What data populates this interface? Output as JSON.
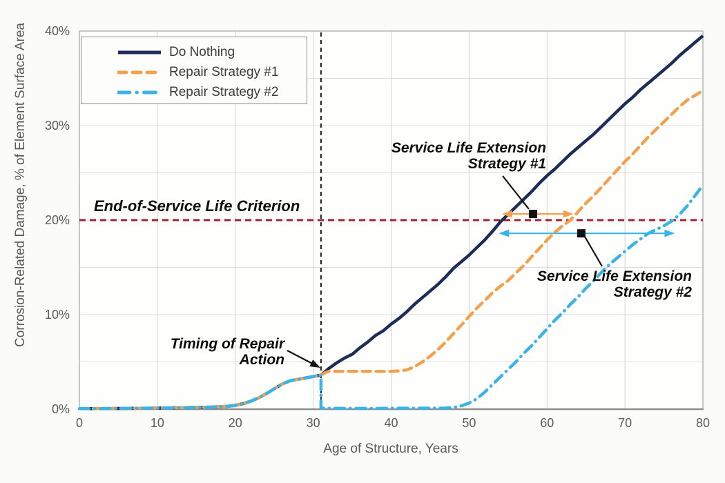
{
  "figure": {
    "background": "#fbfbf9",
    "plot_background": "#fefefd"
  },
  "chart_data": {
    "type": "line",
    "title": "",
    "xlabel": "Age of Structure, Years",
    "ylabel": "Corrosion-Related Damage, % of Element Surface Area",
    "xlim": [
      0,
      80
    ],
    "ylim": [
      0,
      40
    ],
    "grid": {
      "horizontal_step_pct": 5,
      "vertical_step_years": 10,
      "color_h": "#dcdcdc",
      "color_v": "#d3d3d3"
    },
    "legend_position": "top-left",
    "x_ticks": [
      {
        "value": 0,
        "label": "0"
      },
      {
        "value": 10,
        "label": "10"
      },
      {
        "value": 20,
        "label": "20"
      },
      {
        "value": 30,
        "label": "30"
      },
      {
        "value": 40,
        "label": "40"
      },
      {
        "value": 50,
        "label": "50"
      },
      {
        "value": 60,
        "label": "60"
      },
      {
        "value": 70,
        "label": "70"
      },
      {
        "value": 80,
        "label": "80"
      }
    ],
    "y_ticks": [
      {
        "value": 0,
        "label": "0%"
      },
      {
        "value": 10,
        "label": "10%"
      },
      {
        "value": 20,
        "label": "20%"
      },
      {
        "value": 30,
        "label": "30%"
      },
      {
        "value": 40,
        "label": "40%"
      }
    ],
    "series": [
      {
        "name": "Do Nothing",
        "color": "#1e2d58",
        "style": "solid",
        "points": [
          [
            0,
            0.05
          ],
          [
            3,
            0.06
          ],
          [
            6,
            0.08
          ],
          [
            9,
            0.1
          ],
          [
            12,
            0.14
          ],
          [
            15,
            0.18
          ],
          [
            17,
            0.22
          ],
          [
            19,
            0.3
          ],
          [
            20,
            0.4
          ],
          [
            21,
            0.58
          ],
          [
            22,
            0.85
          ],
          [
            23,
            1.2
          ],
          [
            24,
            1.65
          ],
          [
            25,
            2.15
          ],
          [
            26,
            2.65
          ],
          [
            27,
            3.0
          ],
          [
            28,
            3.15
          ],
          [
            29,
            3.3
          ],
          [
            30,
            3.45
          ],
          [
            31,
            3.6
          ],
          [
            32,
            4.3
          ],
          [
            33,
            4.9
          ],
          [
            34,
            5.4
          ],
          [
            35,
            5.8
          ],
          [
            36,
            6.5
          ],
          [
            37,
            7.1
          ],
          [
            38,
            7.8
          ],
          [
            39,
            8.3
          ],
          [
            40,
            9.0
          ],
          [
            41,
            9.6
          ],
          [
            42,
            10.3
          ],
          [
            43,
            11.1
          ],
          [
            44,
            11.8
          ],
          [
            45,
            12.5
          ],
          [
            46,
            13.2
          ],
          [
            47,
            14.0
          ],
          [
            48,
            14.9
          ],
          [
            49,
            15.6
          ],
          [
            50,
            16.3
          ],
          [
            51,
            17.1
          ],
          [
            52,
            17.9
          ],
          [
            53,
            18.8
          ],
          [
            54,
            19.8
          ],
          [
            55,
            20.6
          ],
          [
            56,
            21.4
          ],
          [
            57,
            22.2
          ],
          [
            58,
            23.0
          ],
          [
            59,
            23.9
          ],
          [
            60,
            24.7
          ],
          [
            61,
            25.4
          ],
          [
            62,
            26.2
          ],
          [
            63,
            27.0
          ],
          [
            64,
            27.7
          ],
          [
            65,
            28.4
          ],
          [
            66,
            29.1
          ],
          [
            67,
            29.9
          ],
          [
            68,
            30.7
          ],
          [
            69,
            31.5
          ],
          [
            70,
            32.3
          ],
          [
            71,
            33.0
          ],
          [
            72,
            33.8
          ],
          [
            73,
            34.5
          ],
          [
            74,
            35.2
          ],
          [
            75,
            35.9
          ],
          [
            76,
            36.6
          ],
          [
            77,
            37.4
          ],
          [
            78,
            38.1
          ],
          [
            79,
            38.8
          ],
          [
            80,
            39.5
          ]
        ]
      },
      {
        "name": "Repair Strategy #1",
        "color": "#f2a24f",
        "style": "dashed",
        "points": [
          [
            0,
            0.05
          ],
          [
            3,
            0.06
          ],
          [
            6,
            0.08
          ],
          [
            9,
            0.1
          ],
          [
            12,
            0.14
          ],
          [
            15,
            0.18
          ],
          [
            17,
            0.22
          ],
          [
            19,
            0.3
          ],
          [
            20,
            0.4
          ],
          [
            21,
            0.58
          ],
          [
            22,
            0.85
          ],
          [
            23,
            1.2
          ],
          [
            24,
            1.65
          ],
          [
            25,
            2.15
          ],
          [
            26,
            2.65
          ],
          [
            27,
            3.0
          ],
          [
            28,
            3.15
          ],
          [
            29,
            3.3
          ],
          [
            30,
            3.45
          ],
          [
            31,
            3.6
          ],
          [
            31.5,
            3.85
          ],
          [
            32,
            4.0
          ],
          [
            34,
            4.0
          ],
          [
            36,
            4.0
          ],
          [
            38,
            4.0
          ],
          [
            40,
            4.0
          ],
          [
            41,
            4.05
          ],
          [
            42,
            4.15
          ],
          [
            43,
            4.5
          ],
          [
            44,
            5.0
          ],
          [
            45,
            5.6
          ],
          [
            46,
            6.3
          ],
          [
            47,
            7.1
          ],
          [
            48,
            8.0
          ],
          [
            49,
            8.9
          ],
          [
            50,
            9.8
          ],
          [
            51,
            10.7
          ],
          [
            52,
            11.5
          ],
          [
            53,
            12.3
          ],
          [
            54,
            13.0
          ],
          [
            55,
            13.6
          ],
          [
            56,
            14.4
          ],
          [
            57,
            15.2
          ],
          [
            58,
            16.1
          ],
          [
            59,
            17.0
          ],
          [
            60,
            17.9
          ],
          [
            61,
            18.7
          ],
          [
            62,
            19.4
          ],
          [
            63,
            20.0
          ],
          [
            64,
            20.9
          ],
          [
            65,
            21.8
          ],
          [
            66,
            22.6
          ],
          [
            67,
            23.5
          ],
          [
            68,
            24.4
          ],
          [
            69,
            25.3
          ],
          [
            70,
            26.2
          ],
          [
            71,
            27.0
          ],
          [
            72,
            27.9
          ],
          [
            73,
            28.8
          ],
          [
            74,
            29.6
          ],
          [
            75,
            30.4
          ],
          [
            76,
            31.2
          ],
          [
            77,
            32.0
          ],
          [
            78,
            32.7
          ],
          [
            79,
            33.2
          ],
          [
            80,
            33.7
          ]
        ]
      },
      {
        "name": "Repair Strategy #2",
        "color": "#3cb3e6",
        "style": "dashdot",
        "points": [
          [
            0,
            0.05
          ],
          [
            3,
            0.06
          ],
          [
            6,
            0.08
          ],
          [
            9,
            0.1
          ],
          [
            12,
            0.14
          ],
          [
            15,
            0.18
          ],
          [
            17,
            0.22
          ],
          [
            19,
            0.3
          ],
          [
            20,
            0.4
          ],
          [
            21,
            0.58
          ],
          [
            22,
            0.85
          ],
          [
            23,
            1.2
          ],
          [
            24,
            1.65
          ],
          [
            25,
            2.15
          ],
          [
            26,
            2.65
          ],
          [
            27,
            3.0
          ],
          [
            28,
            3.15
          ],
          [
            29,
            3.3
          ],
          [
            30,
            3.45
          ],
          [
            31,
            3.6
          ],
          [
            31,
            0.1
          ],
          [
            34,
            0.08
          ],
          [
            38,
            0.08
          ],
          [
            42,
            0.1
          ],
          [
            45,
            0.1
          ],
          [
            47,
            0.12
          ],
          [
            48,
            0.18
          ],
          [
            49,
            0.35
          ],
          [
            50,
            0.65
          ],
          [
            51,
            1.1
          ],
          [
            52,
            1.8
          ],
          [
            53,
            2.6
          ],
          [
            54,
            3.4
          ],
          [
            55,
            4.2
          ],
          [
            56,
            5.0
          ],
          [
            57,
            5.9
          ],
          [
            58,
            6.7
          ],
          [
            59,
            7.6
          ],
          [
            60,
            8.5
          ],
          [
            61,
            9.4
          ],
          [
            62,
            10.2
          ],
          [
            63,
            11.1
          ],
          [
            64,
            11.9
          ],
          [
            65,
            12.8
          ],
          [
            66,
            13.6
          ],
          [
            67,
            14.5
          ],
          [
            68,
            15.3
          ],
          [
            69,
            16.0
          ],
          [
            70,
            16.7
          ],
          [
            71,
            17.4
          ],
          [
            72,
            18.0
          ],
          [
            73,
            18.6
          ],
          [
            74,
            19.0
          ],
          [
            75,
            19.4
          ],
          [
            76,
            19.9
          ],
          [
            77,
            20.6
          ],
          [
            78,
            21.5
          ],
          [
            79,
            22.6
          ],
          [
            80,
            23.7
          ]
        ]
      }
    ],
    "reference_lines": [
      {
        "id": "end-of-service",
        "label": "End-of-Service Life Criterion",
        "axis": "y",
        "value": 20,
        "color": "#9e2433",
        "dash": "9 6",
        "width": 3
      },
      {
        "id": "repair-timing",
        "label": "Timing of Repair Action",
        "axis": "x",
        "value": 31,
        "color": "#1a1a1a",
        "dash": "6 5",
        "width": 2
      }
    ],
    "arrows": [
      {
        "id": "sle1",
        "color": "#f2a24f",
        "y_pct": 20.65,
        "from_year": 54.2,
        "to_year": 63.4,
        "marker_year": 58.2
      },
      {
        "id": "sle2",
        "color": "#3cb3e6",
        "y_pct": 18.6,
        "from_year": 53.8,
        "to_year": 76.4,
        "marker_year": 64.4
      }
    ],
    "annotations": [
      {
        "id": "eos",
        "lines": [
          "End-of-Service Life Criterion"
        ]
      },
      {
        "id": "timing",
        "lines": [
          "Timing of Repair",
          "Action"
        ]
      },
      {
        "id": "sle1",
        "lines": [
          "Service Life Extension",
          "Strategy #1"
        ]
      },
      {
        "id": "sle2",
        "lines": [
          "Service Life Extension",
          "Strategy #2"
        ]
      }
    ]
  }
}
